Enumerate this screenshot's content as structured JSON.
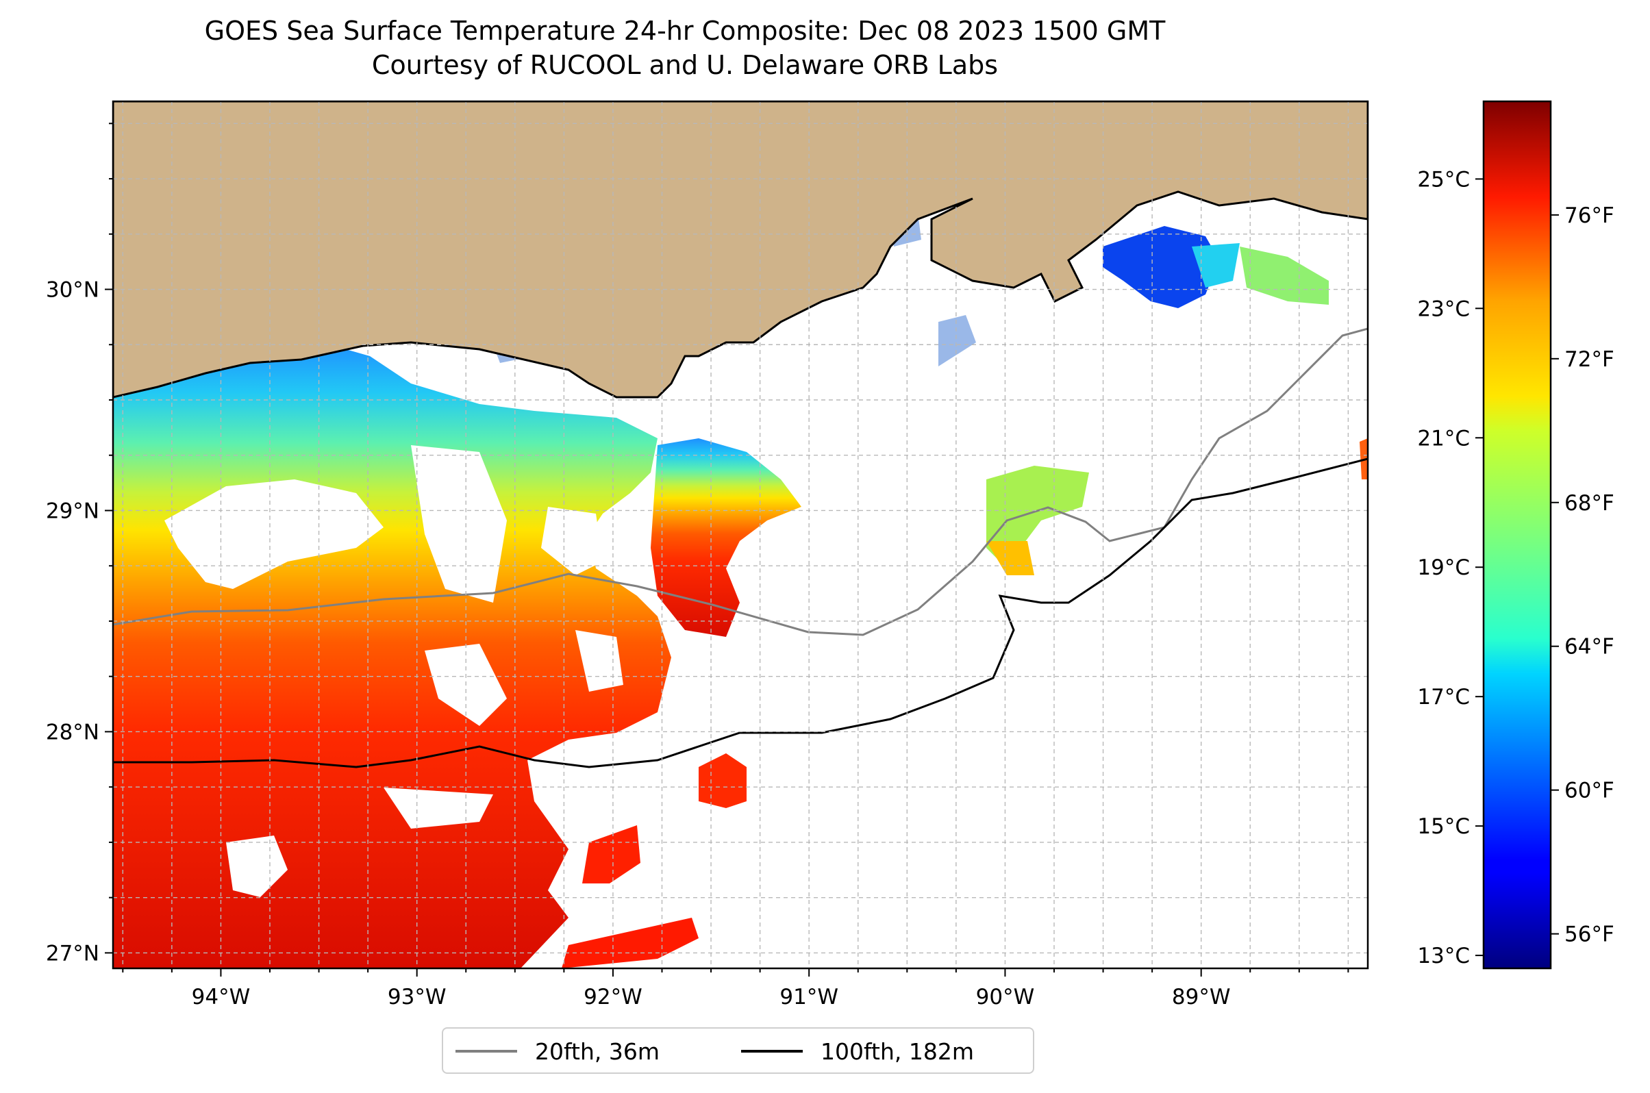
{
  "title": "GOES Sea Surface Temperature 24-hr Composite: Dec 08 2023 1500 GMT",
  "subtitle": "Courtesy of RUCOOL and U. Delaware ORB Labs",
  "map": {
    "lon_range": [
      -94.55,
      -88.15
    ],
    "lat_range": [
      26.93,
      30.85
    ],
    "lon_ticks": [
      {
        "value": -94,
        "label": "94°W"
      },
      {
        "value": -93,
        "label": "93°W"
      },
      {
        "value": -92,
        "label": "92°W"
      },
      {
        "value": -91,
        "label": "91°W"
      },
      {
        "value": -90,
        "label": "90°W"
      },
      {
        "value": -89,
        "label": "89°W"
      }
    ],
    "lat_ticks": [
      {
        "value": 27,
        "label": "27°N"
      },
      {
        "value": 28,
        "label": "28°N"
      },
      {
        "value": 29,
        "label": "29°N"
      },
      {
        "value": 30,
        "label": "30°N"
      }
    ],
    "grid": true,
    "grid_step_deg": 0.25,
    "colors": {
      "land": "#cfb38a",
      "water_nodata": "#ffffff",
      "coast": "#000000",
      "isobath_20fth": "#808080",
      "isobath_100fth": "#000000"
    }
  },
  "colorbar": {
    "colormap": "jet",
    "range_c": [
      12.8,
      26.2
    ],
    "celsius_ticks": [
      {
        "value": 25,
        "label": "25°C"
      },
      {
        "value": 23,
        "label": "23°C"
      },
      {
        "value": 21,
        "label": "21°C"
      },
      {
        "value": 19,
        "label": "19°C"
      },
      {
        "value": 17,
        "label": "17°C"
      },
      {
        "value": 15,
        "label": "15°C"
      },
      {
        "value": 13,
        "label": "13°C"
      }
    ],
    "fahrenheit_ticks": [
      {
        "value": 76,
        "label": "76°F"
      },
      {
        "value": 72,
        "label": "72°F"
      },
      {
        "value": 68,
        "label": "68°F"
      },
      {
        "value": 64,
        "label": "64°F"
      },
      {
        "value": 60,
        "label": "60°F"
      },
      {
        "value": 56,
        "label": "56°F"
      }
    ]
  },
  "legend": {
    "placement": "bottom-center",
    "entries": [
      {
        "label": "20fth, 36m",
        "color": "#808080"
      },
      {
        "label": "100fth, 182m",
        "color": "#000000"
      }
    ]
  }
}
